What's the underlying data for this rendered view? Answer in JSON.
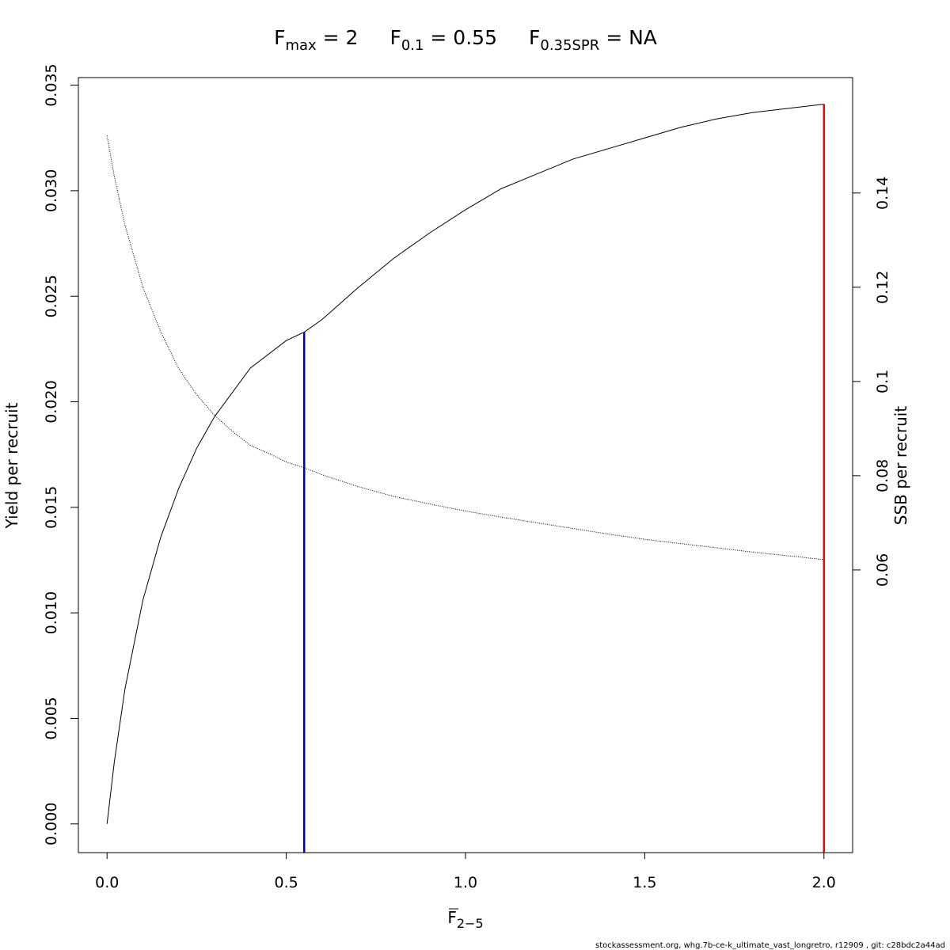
{
  "chart_data": {
    "type": "line",
    "title_parts": [
      {
        "sym": "F",
        "sub": "max",
        "eq": " = 2"
      },
      {
        "sym": "F",
        "sub": "0.1",
        "eq": " = 0.55"
      },
      {
        "sym": "F",
        "sub": "0.35SPR",
        "eq": " = NA"
      }
    ],
    "xlabel": {
      "sym": "F",
      "sub": "2−5"
    },
    "ylabel": "Yield per recruit",
    "y2label": "SSB per recruit",
    "xlim": [
      -0.08,
      2.08
    ],
    "ylim": [
      -0.00136,
      0.03536
    ],
    "y2lim": [
      0.0,
      0.1645
    ],
    "x_ticks": [
      0.0,
      0.5,
      1.0,
      1.5,
      2.0
    ],
    "x_tick_labels": [
      "0.0",
      "0.5",
      "1.0",
      "1.5",
      "2.0"
    ],
    "y_ticks": [
      0.0,
      0.005,
      0.01,
      0.015,
      0.02,
      0.025,
      0.03,
      0.035
    ],
    "y_tick_labels": [
      "0.000",
      "0.005",
      "0.010",
      "0.015",
      "0.020",
      "0.025",
      "0.030",
      "0.035"
    ],
    "y2_ticks": [
      0.06,
      0.08,
      0.1,
      0.12,
      0.14
    ],
    "y2_tick_labels": [
      "0.06",
      "0.08",
      "0.1",
      "0.12",
      "0.14"
    ],
    "series": [
      {
        "axis": "left",
        "style": "solid",
        "color": "#000000",
        "x": [
          0.0,
          0.02,
          0.05,
          0.1,
          0.15,
          0.2,
          0.25,
          0.3,
          0.4,
          0.5,
          0.55,
          0.6,
          0.7,
          0.8,
          0.9,
          1.0,
          1.1,
          1.2,
          1.3,
          1.4,
          1.5,
          1.6,
          1.7,
          1.8,
          1.9,
          2.0
        ],
        "y": [
          0.0,
          0.0029,
          0.0064,
          0.0106,
          0.0136,
          0.0159,
          0.0178,
          0.0193,
          0.0216,
          0.0229,
          0.0233,
          0.0239,
          0.0254,
          0.0268,
          0.028,
          0.0291,
          0.0301,
          0.0308,
          0.0315,
          0.032,
          0.0325,
          0.033,
          0.0334,
          0.0337,
          0.0339,
          0.0341
        ]
      },
      {
        "axis": "right",
        "style": "dotted",
        "color": "#000000",
        "x": [
          0.0,
          0.02,
          0.05,
          0.1,
          0.15,
          0.2,
          0.25,
          0.3,
          0.35,
          0.4,
          0.45,
          0.5,
          0.55,
          0.6,
          0.7,
          0.8,
          0.9,
          1.0,
          1.1,
          1.2,
          1.3,
          1.4,
          1.5,
          1.6,
          1.7,
          1.8,
          1.9,
          2.0
        ],
        "y": [
          0.1522,
          0.1436,
          0.1332,
          0.12,
          0.1105,
          0.1027,
          0.0972,
          0.0928,
          0.0894,
          0.0864,
          0.0848,
          0.0829,
          0.0817,
          0.0802,
          0.0777,
          0.0756,
          0.074,
          0.0725,
          0.0712,
          0.07,
          0.0688,
          0.0676,
          0.0665,
          0.0656,
          0.0647,
          0.0638,
          0.063,
          0.0622
        ]
      }
    ],
    "vlines": [
      {
        "x": 0.55,
        "y_top": 0.0233,
        "color": "#0000cc",
        "label": "F0.1"
      },
      {
        "x": 2.0,
        "y_top": 0.0341,
        "color": "#ff0000",
        "label": "Fmax"
      }
    ],
    "footer": "stockassessment.org, whg.7b-ce-k_ultimate_vast_longretro, r12909 , git: c28bdc2a44ad"
  }
}
